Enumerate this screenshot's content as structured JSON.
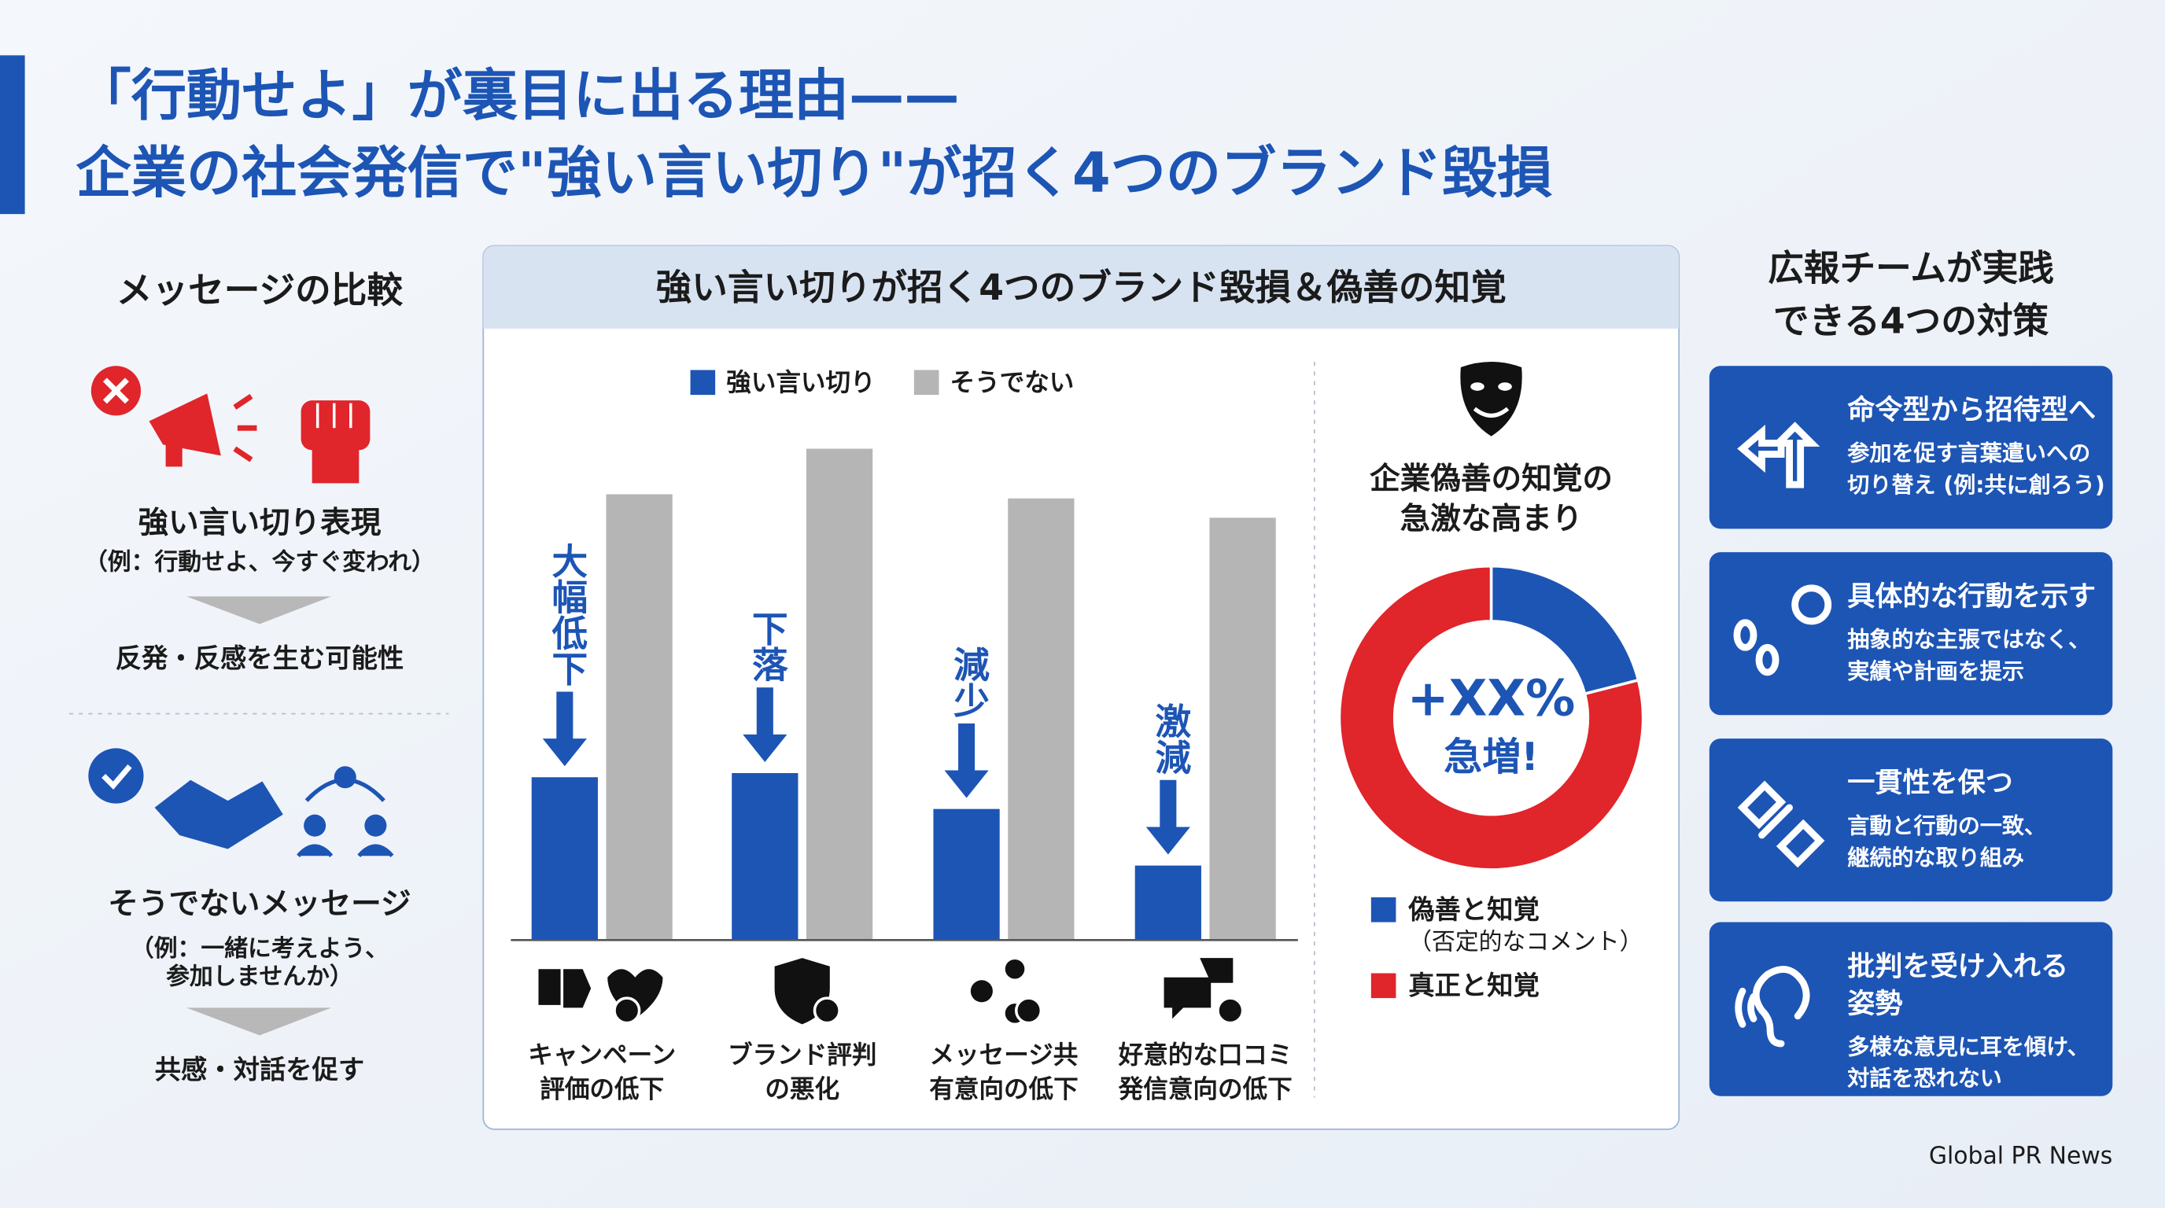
{
  "header": {
    "title_lines": [
      "「行動せよ」が裏目に出る理由——",
      "企業の社会発信で\"強い言い切り\"が招く4つのブランド毀損"
    ]
  },
  "comparison": {
    "heading": "メッセージの比較",
    "strong": {
      "label": "強い言い切り表現",
      "example_lines": [
        "（例：行動せよ、今すぐ変われ）"
      ],
      "result": "反発・反感を生む可能性"
    },
    "soft": {
      "label": "そうでないメッセージ",
      "example_lines": [
        "（例：一緒に考えよう、",
        "参加しませんか）"
      ],
      "result": "共感・対話を促す"
    }
  },
  "chart_data": [
    {
      "type": "bar",
      "title": "強い言い切りが招く4つのブランド毀損＆偽善の知覚",
      "categories": [
        [
          "キャンペーン",
          "評価の低下"
        ],
        [
          "ブランド評判",
          "の悪化"
        ],
        [
          "メッセージ共",
          "有意向の低下"
        ],
        [
          "好意的な口コミ",
          "発信意向の低下"
        ]
      ],
      "annotations": [
        "大幅低下",
        "下落",
        "減少",
        "激減"
      ],
      "series": [
        {
          "name": "強い言い切り",
          "color": "#1d55b5",
          "values": [
            118,
            121,
            95,
            54
          ]
        },
        {
          "name": "そうでない",
          "color": "#b5b5b5",
          "values": [
            323,
            356,
            320,
            306
          ]
        }
      ],
      "ylim": [
        0,
        380
      ]
    },
    {
      "type": "pie",
      "title_lines": [
        "企業偽善の知覚の",
        "急激な高まり"
      ],
      "center_lines": [
        "+XX%",
        "急増!"
      ],
      "categories": [
        "偽善と知覚",
        "真正と知覚"
      ],
      "values": [
        21,
        79
      ],
      "colors": [
        "#1d55b5",
        "#e0252b"
      ],
      "note": "（否定的なコメント）"
    }
  ],
  "measures": {
    "heading_lines": [
      "広報チームが実践",
      "できる4つの対策"
    ],
    "cards": [
      {
        "title_lines": [
          "命令型から招待型へ"
        ],
        "body_lines": [
          "参加を促す言葉遣いへの",
          "切り替え (例:共に創ろう)"
        ]
      },
      {
        "title_lines": [
          "具体的な行動を示す"
        ],
        "body_lines": [
          "抽象的な主張ではなく、",
          "実績や計画を提示"
        ]
      },
      {
        "title_lines": [
          "一貫性を保つ"
        ],
        "body_lines": [
          "言動と行動の一致、",
          "継続的な取り組み"
        ]
      },
      {
        "title_lines": [
          "批判を受け入れる",
          "姿勢"
        ],
        "body_lines": [
          "多様な意見に耳を傾け、",
          "対話を恐れない"
        ]
      }
    ]
  },
  "footer": {
    "source": "Global PR News"
  }
}
